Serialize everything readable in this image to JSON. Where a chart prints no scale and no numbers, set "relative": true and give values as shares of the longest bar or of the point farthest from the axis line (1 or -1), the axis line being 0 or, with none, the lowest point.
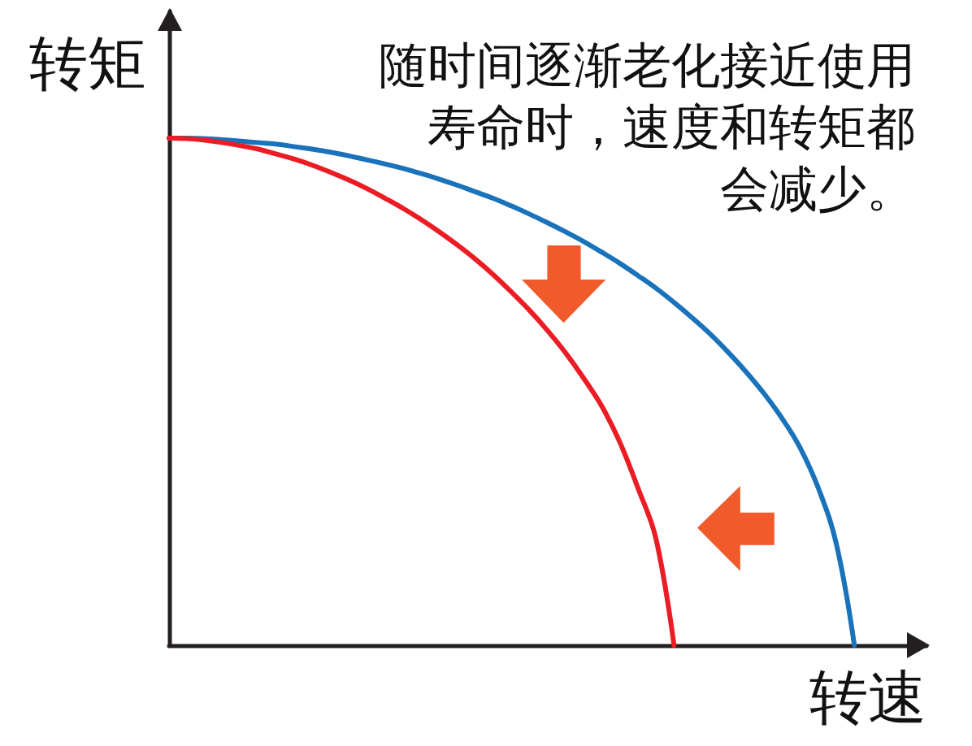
{
  "chart_data": {
    "type": "line",
    "relative": true,
    "xlabel": "转速",
    "ylabel": "转矩",
    "annotations": [
      "随时间逐渐老化接近使用寿命时，速度和转矩都会减少。"
    ],
    "categories": [
      null,
      null,
      null,
      null,
      null,
      null,
      null,
      null,
      null,
      null,
      null,
      null,
      null,
      null,
      null,
      null,
      null,
      null,
      null,
      null,
      null,
      null,
      null,
      null,
      null,
      null,
      null,
      null,
      null,
      null,
      null,
      null,
      null,
      null,
      null,
      null,
      null,
      null,
      null,
      null,
      null,
      null,
      null
    ],
    "series": [
      {
        "color": "#1a72bb",
        "values": [
          1,
          1,
          0.999,
          0.997,
          0.994,
          0.991,
          0.988,
          0.983,
          0.978,
          0.972,
          0.965,
          0.957,
          0.949,
          0.94,
          0.93,
          0.919,
          0.907,
          0.894,
          0.881,
          0.866,
          0.85,
          0.833,
          0.815,
          0.796,
          0.775,
          0.753,
          0.729,
          0.704,
          0.676,
          0.646,
          0.614,
          0.578,
          0.539,
          0.496,
          0.447,
          0.389,
          0.31,
          0.2,
          0,
          null,
          null,
          null,
          null
        ]
      },
      {
        "color": "#ec1c24",
        "values": [
          1,
          0.999,
          0.996,
          0.991,
          0.985,
          0.978,
          0.968,
          0.958,
          0.946,
          0.932,
          0.917,
          0.9,
          0.881,
          0.861,
          0.839,
          0.815,
          0.789,
          0.761,
          0.73,
          0.696,
          0.66,
          0.62,
          0.576,
          0.526,
          0.471,
          0.4,
          0.31,
          0.21,
          0,
          null,
          null,
          null,
          null,
          null,
          null,
          null,
          null,
          null,
          null,
          null,
          null,
          null,
          null
        ]
      }
    ]
  }
}
